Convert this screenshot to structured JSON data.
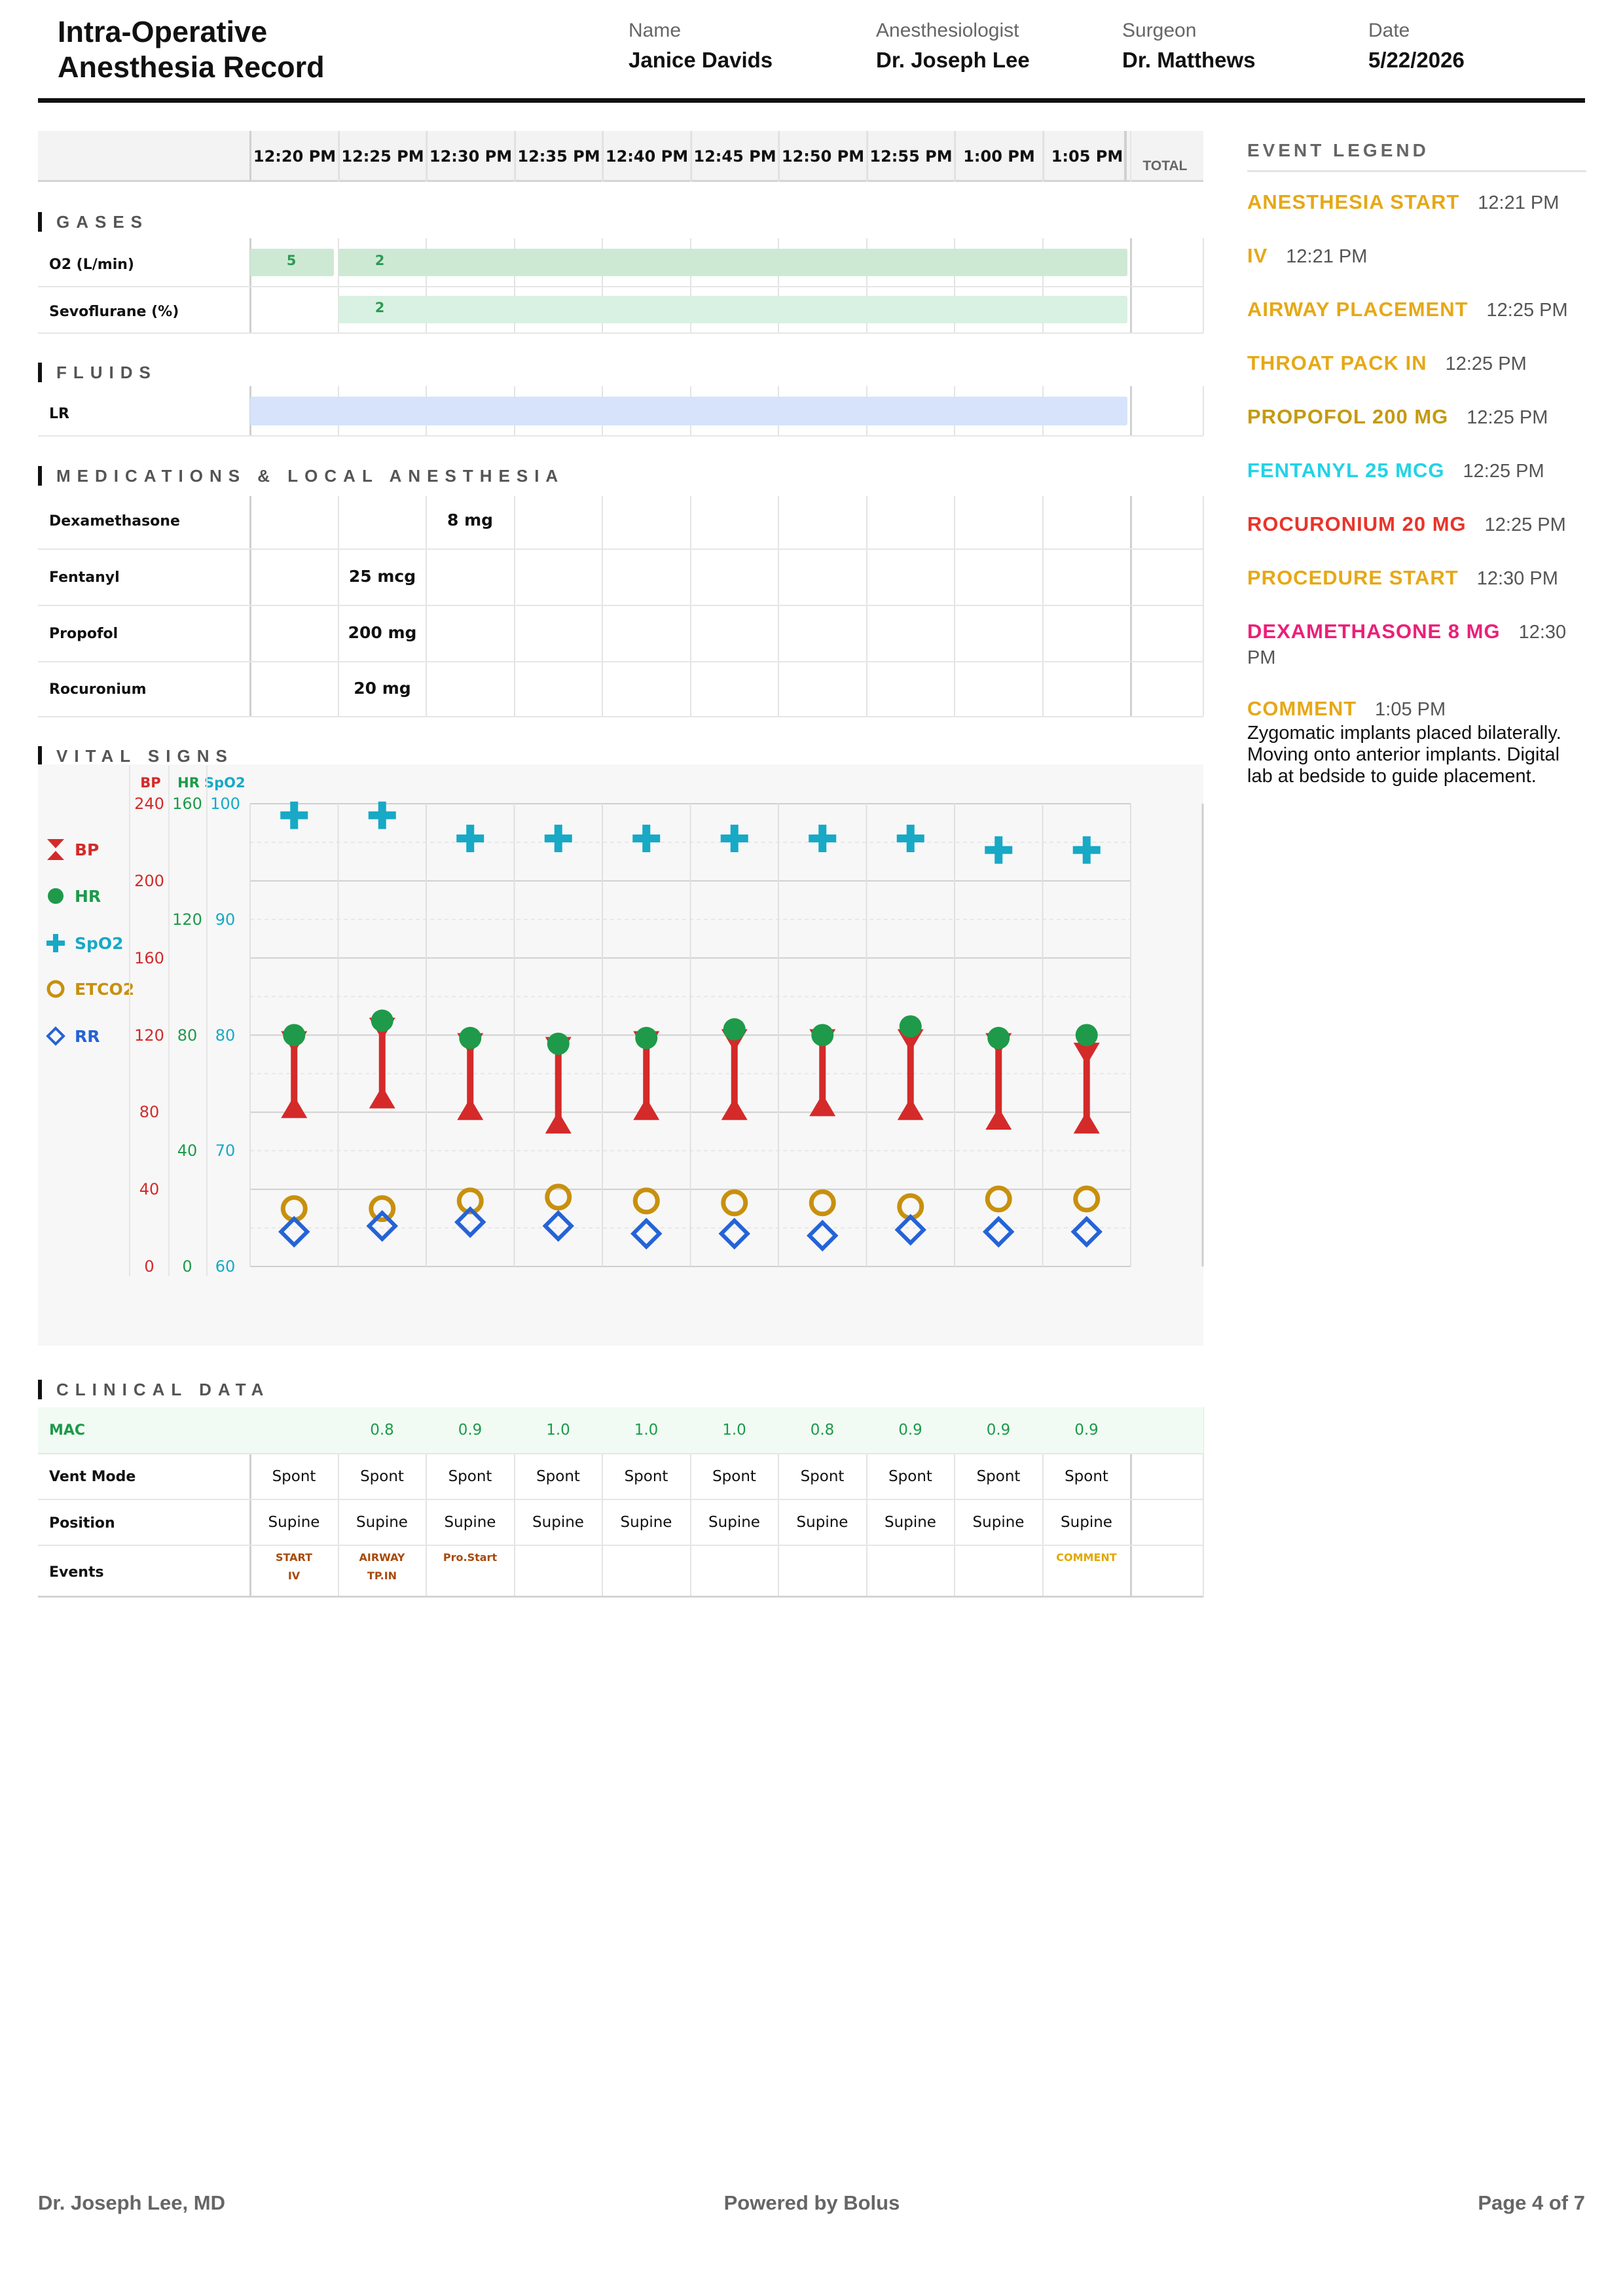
{
  "header": {
    "title_line1": "Intra-Operative",
    "title_line2": "Anesthesia Record",
    "name_label": "Name",
    "name_value": "Janice Davids",
    "anesth_label": "Anesthesiologist",
    "anesth_value": "Dr. Joseph Lee",
    "surgeon_label": "Surgeon",
    "surgeon_value": "Dr. Matthews",
    "date_label": "Date",
    "date_value": "5/22/2026"
  },
  "grid": {
    "times": [
      "12:20 PM",
      "12:25 PM",
      "12:30 PM",
      "12:35 PM",
      "12:40 PM",
      "12:45 PM",
      "12:50 PM",
      "12:55 PM",
      "1:00 PM",
      "1:05 PM"
    ],
    "total_label": "TOTAL"
  },
  "gases": {
    "title": "GASES",
    "o2": {
      "label": "O2 (L/min)",
      "v1": "5",
      "v2": "2"
    },
    "sevo": {
      "label": "Sevoflurane (%)",
      "v1": "2"
    }
  },
  "fluids": {
    "title": "FLUIDS",
    "lr": {
      "label": "LR"
    }
  },
  "meds": {
    "title": "MEDICATIONS & LOCAL ANESTHESIA",
    "rows": [
      {
        "label": "Dexamethasone",
        "value": "8 mg"
      },
      {
        "label": "Fentanyl",
        "value": "25 mcg"
      },
      {
        "label": "Propofol",
        "value": "200 mg"
      },
      {
        "label": "Rocuronium",
        "value": "20 mg"
      }
    ]
  },
  "vitals": {
    "title": "VITAL SIGNS",
    "legend": {
      "bp": "BP",
      "hr": "HR",
      "spo2": "SpO2",
      "etco2": "ETCO2",
      "rr": "RR"
    },
    "axis_heads": {
      "bp": "BP",
      "hr": "HR",
      "spo2": "SpO2"
    },
    "bp_ticks": [
      "240",
      "200",
      "160",
      "120",
      "80",
      "40",
      "0"
    ],
    "hr_ticks": [
      "160",
      "120",
      "80",
      "40",
      "0"
    ],
    "spo2_ticks": [
      "100",
      "90",
      "80",
      "70",
      "60"
    ],
    "colors": {
      "bp": "#d42a2a",
      "hr": "#1e9a4a",
      "spo2": "#17a9c6",
      "etco2": "#c8900e",
      "rr": "#2563d6"
    }
  },
  "chart_data": {
    "type": "scatter",
    "x": [
      "12:20 PM",
      "12:25 PM",
      "12:30 PM",
      "12:35 PM",
      "12:40 PM",
      "12:45 PM",
      "12:50 PM",
      "12:55 PM",
      "1:00 PM",
      "1:05 PM"
    ],
    "bp_ylim": [
      0,
      240
    ],
    "hr_ylim": [
      0,
      160
    ],
    "spo2_ylim": [
      60,
      100
    ],
    "series": [
      {
        "name": "BP systolic",
        "values": [
          120,
          127,
          119,
          117,
          120,
          121,
          121,
          121,
          119,
          114
        ]
      },
      {
        "name": "BP diastolic",
        "values": [
          79,
          84,
          78,
          71,
          78,
          78,
          80,
          78,
          73,
          71
        ]
      },
      {
        "name": "HR",
        "values": [
          80,
          85,
          79,
          77,
          79,
          82,
          80,
          83,
          79,
          80
        ]
      },
      {
        "name": "SpO2",
        "values": [
          99,
          99,
          97,
          97,
          97,
          97,
          97,
          97,
          96,
          96
        ]
      },
      {
        "name": "ETCO2",
        "values": [
          30,
          30,
          34,
          36,
          34,
          33,
          33,
          31,
          35,
          35
        ]
      },
      {
        "name": "RR",
        "values": [
          18,
          21,
          23,
          21,
          17,
          17,
          16,
          19,
          18,
          18
        ]
      }
    ]
  },
  "clinical": {
    "title": "CLINICAL DATA",
    "mac_label": "MAC",
    "mac": [
      "",
      "0.8",
      "0.9",
      "1.0",
      "1.0",
      "1.0",
      "0.8",
      "0.9",
      "0.9",
      "0.9"
    ],
    "vent_label": "Vent Mode",
    "vent": [
      "Spont",
      "Spont",
      "Spont",
      "Spont",
      "Spont",
      "Spont",
      "Spont",
      "Spont",
      "Spont",
      "Spont"
    ],
    "pos_label": "Position",
    "pos": [
      "Supine",
      "Supine",
      "Supine",
      "Supine",
      "Supine",
      "Supine",
      "Supine",
      "Supine",
      "Supine",
      "Supine"
    ],
    "events_label": "Events",
    "events": [
      {
        "l1": "START",
        "l2": "IV",
        "color": "#a84a0a"
      },
      {
        "l1": "AIRWAY",
        "l2": "TP.IN",
        "color": "#a84a0a"
      },
      {
        "l1": "Pro.Start",
        "l2": "",
        "color": "#a84a0a"
      },
      null,
      null,
      null,
      null,
      null,
      null,
      {
        "l1": "COMMENT",
        "l2": "",
        "color": "#e0a800"
      }
    ]
  },
  "event_legend": {
    "title": "EVENT LEGEND",
    "items": [
      {
        "name": "ANESTHESIA START",
        "time": "12:21 PM",
        "color": "#e6a817"
      },
      {
        "name": "IV",
        "time": "12:21 PM",
        "color": "#e6a817"
      },
      {
        "name": "AIRWAY PLACEMENT",
        "time": "12:25 PM",
        "color": "#e6a817"
      },
      {
        "name": "THROAT PACK IN",
        "time": "12:25 PM",
        "color": "#e6a817"
      },
      {
        "name": "PROPOFOL 200 MG",
        "time": "12:25 PM",
        "color": "#c49a10"
      },
      {
        "name": "FENTANYL 25 MCG",
        "time": "12:25 PM",
        "color": "#22d3e6"
      },
      {
        "name": "ROCURONIUM 20 MG",
        "time": "12:25 PM",
        "color": "#e8352b"
      },
      {
        "name": "PROCEDURE START",
        "time": "12:30 PM",
        "color": "#e6a817"
      },
      {
        "name": "DEXAMETHASONE 8 MG",
        "time": "12:30 PM",
        "color": "#ec1f79"
      },
      {
        "name": "COMMENT",
        "time": "1:05 PM",
        "color": "#e6a817"
      }
    ],
    "comment_text": "Zygomatic implants placed bilaterally. Moving onto anterior implants. Digital lab at bedside to guide placement."
  },
  "footer": {
    "left": "Dr. Joseph Lee, MD",
    "center": "Powered by Bolus",
    "right": "Page 4 of 7"
  }
}
